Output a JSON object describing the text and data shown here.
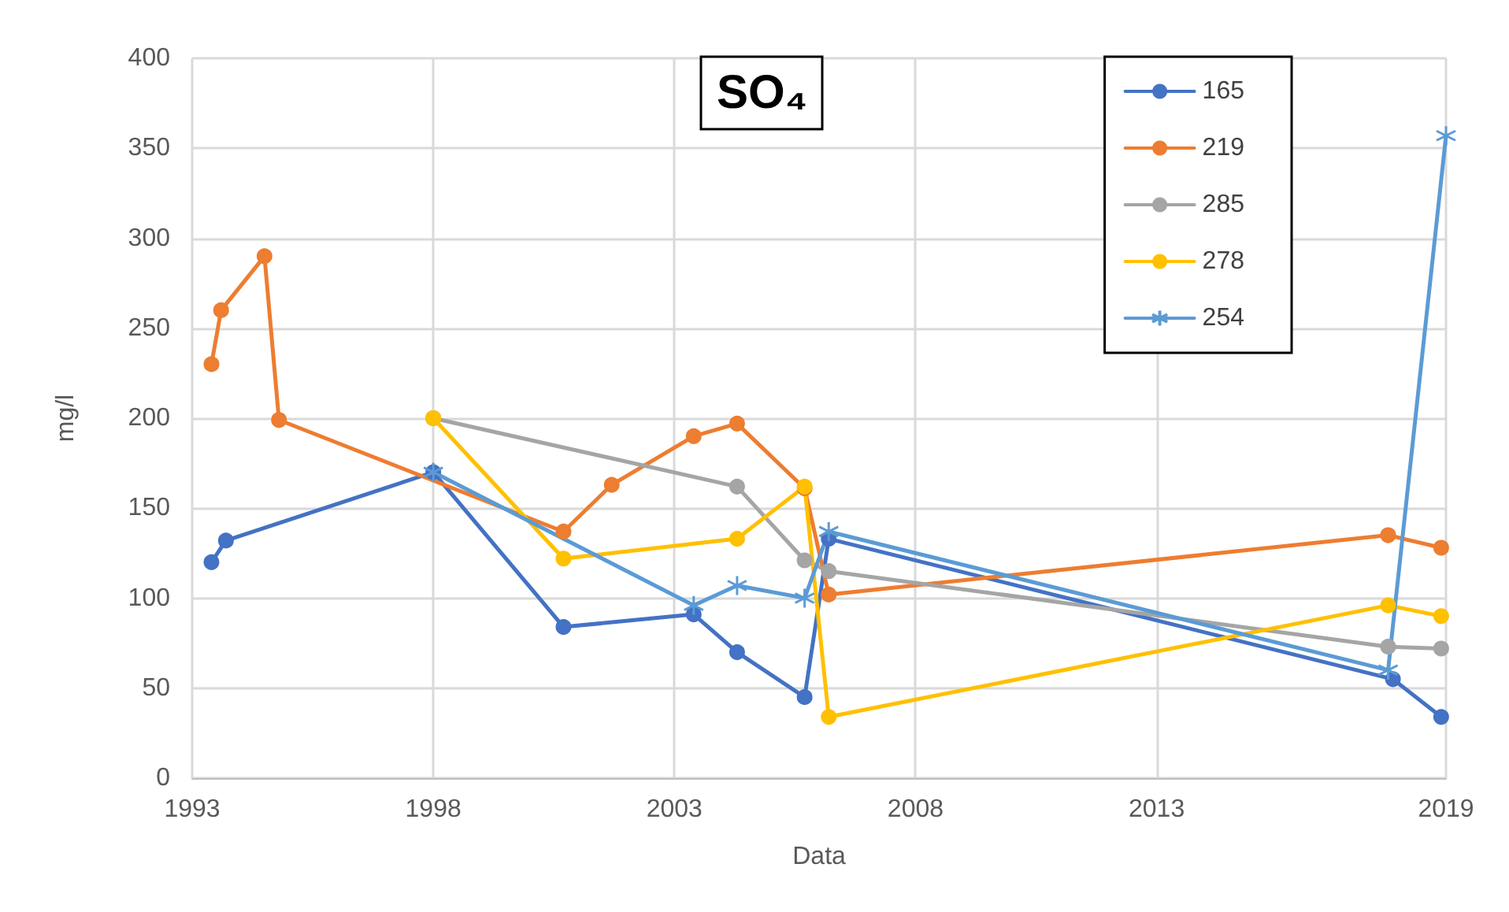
{
  "chart_data": {
    "type": "line",
    "title": "SO₄",
    "xlabel": "Data",
    "ylabel": "mg/l",
    "xlim": [
      1993,
      2019
    ],
    "xticks": [
      1993,
      1998,
      2003,
      2008,
      2013,
      2019
    ],
    "ylim": [
      0,
      400
    ],
    "yticks": [
      0,
      50,
      100,
      150,
      200,
      250,
      300,
      350,
      400
    ],
    "grid": true,
    "legend": "top right",
    "marker": "circle",
    "series": [
      {
        "name": "165",
        "color": "#4472c4",
        "x": [
          1993.4,
          1993.7,
          1998.0,
          2000.7,
          2003.4,
          2004.3,
          2005.7,
          2006.2,
          2017.9,
          2018.9
        ],
        "values": [
          120,
          132,
          170,
          84,
          91,
          70,
          45,
          133,
          55,
          34
        ]
      },
      {
        "name": "219",
        "color": "#ed7d31",
        "x": [
          1993.4,
          1993.6,
          1994.5,
          1994.8,
          2000.7,
          2001.7,
          2003.4,
          2004.3,
          2005.7,
          2006.2,
          2017.8,
          2018.9
        ],
        "values": [
          230,
          260,
          290,
          199,
          137,
          163,
          190,
          197,
          161,
          102,
          135,
          128
        ]
      },
      {
        "name": "285",
        "color": "#a5a5a5",
        "x": [
          1998.0,
          2004.3,
          2005.7,
          2006.2,
          2017.8,
          2018.9
        ],
        "values": [
          200,
          162,
          121,
          115,
          73,
          72
        ]
      },
      {
        "name": "278",
        "color": "#ffc000",
        "x": [
          1998.0,
          2000.7,
          2004.3,
          2005.7,
          2006.2,
          2017.8,
          2018.9
        ],
        "values": [
          200,
          122,
          133,
          162,
          34,
          96,
          90
        ]
      },
      {
        "name": "254",
        "color": "#5b9bd5",
        "marker": "cross",
        "x": [
          1998.0,
          2003.4,
          2004.3,
          2005.7,
          2006.2,
          2017.8,
          2019.0
        ],
        "values": [
          170,
          96,
          107,
          100,
          137,
          60,
          357
        ]
      }
    ]
  }
}
